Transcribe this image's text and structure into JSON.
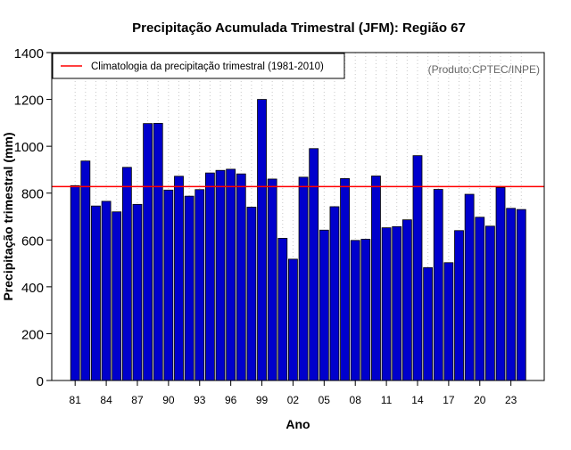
{
  "chart_data": {
    "type": "bar",
    "title": "Precipitação Acumulada Trimestral (JFM): Região 67",
    "xlabel": "Ano",
    "ylabel": "Precipitação trimestral (mm)",
    "ylim": [
      0,
      1400
    ],
    "yticks": [
      0,
      200,
      400,
      600,
      800,
      1000,
      1200,
      1400
    ],
    "categories": [
      "81",
      "82",
      "83",
      "84",
      "85",
      "86",
      "87",
      "88",
      "89",
      "90",
      "91",
      "92",
      "93",
      "94",
      "95",
      "96",
      "97",
      "98",
      "99",
      "00",
      "01",
      "02",
      "03",
      "04",
      "05",
      "06",
      "07",
      "08",
      "09",
      "10",
      "11",
      "12",
      "13",
      "14",
      "15",
      "16",
      "17",
      "18",
      "19",
      "20",
      "21",
      "22",
      "23",
      "24"
    ],
    "values": [
      832,
      937,
      745,
      765,
      720,
      910,
      752,
      1097,
      1098,
      813,
      872,
      787,
      815,
      886,
      897,
      902,
      882,
      740,
      1200,
      860,
      607,
      518,
      868,
      990,
      642,
      742,
      862,
      598,
      603,
      873,
      652,
      657,
      686,
      960,
      482,
      816,
      503,
      640,
      795,
      697,
      659,
      824,
      735,
      730
    ],
    "xtick_labels": [
      "81",
      "84",
      "87",
      "90",
      "93",
      "96",
      "99",
      "02",
      "05",
      "08",
      "11",
      "14",
      "17",
      "20",
      "23"
    ],
    "xtick_categories": [
      "81",
      "84",
      "87",
      "90",
      "93",
      "96",
      "99",
      "02",
      "05",
      "08",
      "11",
      "14",
      "17",
      "20",
      "23"
    ],
    "grid": "vertical-dotted",
    "reference_line": {
      "value": 828,
      "color": "#ff0000"
    },
    "legend": {
      "position": "top-left",
      "label": "Climatologia da precipitação trimestral (1981-2010)"
    },
    "annotation": "(Produto:CPTEC/INPE)",
    "bar_color": "#0000cc"
  }
}
